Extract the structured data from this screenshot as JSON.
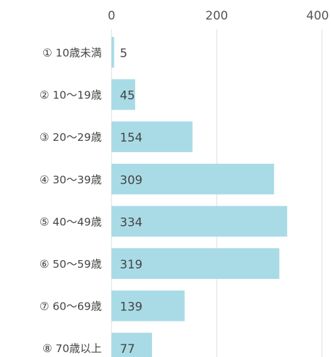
{
  "chart_data": {
    "type": "bar",
    "orientation": "horizontal",
    "categories": [
      "① 10歳未満",
      "② 10～19歳",
      "③ 20～29歳",
      "④ 30～39歳",
      "⑤ 40～49歳",
      "⑥ 50～59歳",
      "⑦ 60～69歳",
      "⑧ 70歳以上"
    ],
    "values": [
      5,
      45,
      154,
      309,
      334,
      319,
      139,
      77
    ],
    "title": "",
    "xlabel": "",
    "ylabel": "",
    "xlim": [
      0,
      400
    ],
    "x_ticks": [
      0,
      200,
      400
    ],
    "x_axis_position": "top",
    "grid": true,
    "data_labels": true,
    "legend": "none",
    "bar_color": "#a9dbe6",
    "grid_color": "#dcdcdc",
    "text_color": "#444444"
  }
}
